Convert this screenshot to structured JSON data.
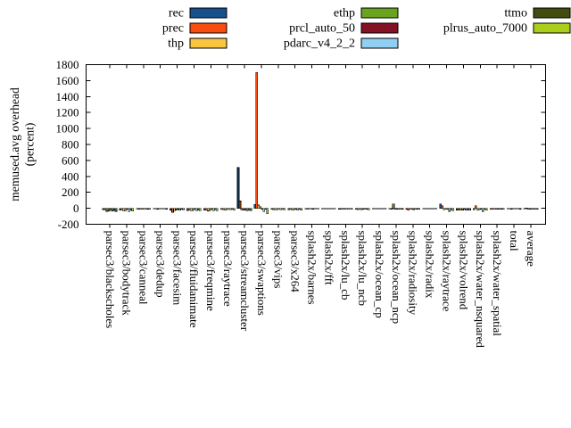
{
  "chart_data": {
    "type": "bar",
    "title": "",
    "ylabel_lines": [
      "memused.avg overhead",
      "(percent)"
    ],
    "ylim": [
      -200,
      1800
    ],
    "ytick_step": 200,
    "yticks": [
      -200,
      0,
      200,
      400,
      600,
      800,
      1000,
      1200,
      1400,
      1600,
      1800
    ],
    "grid": false,
    "legend_position": "top",
    "categories": [
      "parsec3/blackscholes",
      "parsec3/bodytrack",
      "parsec3/canneal",
      "parsec3/dedup",
      "parsec3/facesim",
      "parsec3/fluidanimate",
      "parsec3/freqmine",
      "parsec3/raytrace",
      "parsec3/streamcluster",
      "parsec3/swaptions",
      "parsec3/vips",
      "parsec3/x264",
      "splash2x/barnes",
      "splash2x/fft",
      "splash2x/lu_cb",
      "splash2x/lu_ncb",
      "splash2x/ocean_cp",
      "splash2x/ocean_ncp",
      "splash2x/radiosity",
      "splash2x/radix",
      "splash2x/raytrace",
      "splash2x/volrend",
      "splash2x/water_nsquared",
      "splash2x/water_spatial",
      "total",
      "average"
    ],
    "series": [
      {
        "name": "rec",
        "color": "#18508c",
        "values": [
          -20,
          -22,
          -8,
          -6,
          -25,
          -28,
          -25,
          -15,
          510,
          50,
          -15,
          -20,
          -8,
          -5,
          -10,
          -12,
          -5,
          -8,
          -10,
          -4,
          55,
          -25,
          -20,
          -12,
          -8,
          -8
        ]
      },
      {
        "name": "prec",
        "color": "#f94d10",
        "values": [
          -18,
          -20,
          -10,
          -8,
          -50,
          -25,
          -22,
          -18,
          90,
          1700,
          -18,
          -15,
          -12,
          -6,
          -15,
          -18,
          -8,
          -10,
          -25,
          -5,
          32,
          -20,
          30,
          -15,
          -6,
          5
        ]
      },
      {
        "name": "thp",
        "color": "#f7c53f",
        "values": [
          -38,
          -35,
          -12,
          -10,
          -28,
          -30,
          -32,
          -25,
          -20,
          40,
          -20,
          -22,
          -8,
          -8,
          -12,
          -15,
          -6,
          52,
          -15,
          -6,
          -18,
          -25,
          -22,
          -15,
          -10,
          -12
        ]
      },
      {
        "name": "ethp",
        "color": "#6aa41f",
        "values": [
          -35,
          -30,
          -14,
          -8,
          -22,
          -28,
          -28,
          -20,
          -25,
          20,
          -18,
          -20,
          -6,
          -5,
          -15,
          -18,
          -5,
          -15,
          -12,
          -4,
          -15,
          -25,
          -18,
          -12,
          -8,
          -10
        ]
      },
      {
        "name": "prcl_auto_50",
        "color": "#841124",
        "values": [
          -12,
          -15,
          -6,
          -5,
          -10,
          -12,
          -10,
          -8,
          -20,
          -15,
          -8,
          -10,
          -10,
          -4,
          -8,
          -10,
          -4,
          -10,
          -18,
          -4,
          -12,
          -15,
          -10,
          -10,
          -5,
          -6
        ]
      },
      {
        "name": "pdarc_v4_2_2",
        "color": "#90cef2",
        "values": [
          -32,
          -42,
          -12,
          -8,
          -25,
          -30,
          -28,
          -20,
          -30,
          -40,
          -18,
          -22,
          -8,
          -6,
          -12,
          -15,
          -6,
          -12,
          -12,
          -5,
          -38,
          -22,
          -38,
          -14,
          -8,
          -12
        ]
      },
      {
        "name": "ttmo",
        "color": "#414d0e",
        "values": [
          -22,
          -25,
          -10,
          -6,
          -15,
          -22,
          -20,
          -12,
          -18,
          -15,
          -12,
          -15,
          -6,
          -5,
          -8,
          -10,
          -5,
          -8,
          -10,
          -4,
          -18,
          -18,
          -15,
          -10,
          -6,
          -8
        ]
      },
      {
        "name": "plrus_auto_7000",
        "color": "#abce1d",
        "values": [
          -38,
          -35,
          -15,
          -10,
          -20,
          -28,
          -30,
          -22,
          -28,
          -70,
          -20,
          -25,
          -8,
          -6,
          -14,
          -18,
          -6,
          -10,
          -12,
          -5,
          -28,
          -22,
          -25,
          -15,
          -10,
          -12
        ]
      }
    ],
    "legend_columns": [
      [
        "rec",
        "prec",
        "thp"
      ],
      [
        "ethp",
        "prcl_auto_50",
        "pdarc_v4_2_2"
      ],
      [
        "ttmo",
        "plrus_auto_7000"
      ]
    ]
  }
}
